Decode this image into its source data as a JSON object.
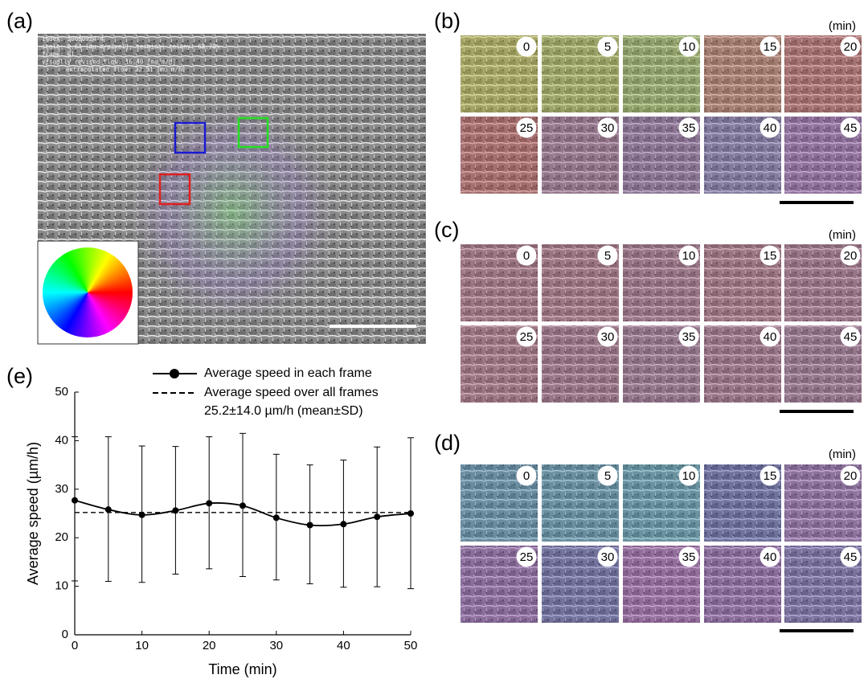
{
  "panel_a": {
    "label": "(a)",
    "overlay_text": [
      "index: 20080924-4",
      "scale: 0.64 [mu m/pixel], terminal colony: 68.70%",
      "frame: 01",
      "visually revised flow: 16.40 [mu m/h]",
      "extrapolated flow: 22.51 [mu m/h]"
    ]
  },
  "panel_b": {
    "label": "(b)",
    "unit": "(min)",
    "times": [
      0,
      5,
      10,
      15,
      20,
      25,
      30,
      35,
      40,
      45
    ]
  },
  "panel_c": {
    "label": "(c)",
    "unit": "(min)",
    "times": [
      0,
      5,
      10,
      15,
      20,
      25,
      30,
      35,
      40,
      45
    ]
  },
  "panel_d": {
    "label": "(d)",
    "unit": "(min)",
    "times": [
      0,
      5,
      10,
      15,
      20,
      25,
      30,
      35,
      40,
      45
    ]
  },
  "chart_data": {
    "type": "line",
    "label": "(e)",
    "xlabel": "Time (min)",
    "ylabel": "Average speed (µm/h)",
    "x": [
      0,
      5,
      10,
      15,
      20,
      25,
      30,
      35,
      40,
      45,
      50
    ],
    "series": [
      {
        "name": "Average speed in each frame",
        "color": "#000000",
        "values": [
          27.7,
          25.8,
          24.7,
          25.6,
          27.1,
          26.6,
          24.1,
          22.6,
          22.8,
          24.3,
          25.0
        ],
        "lower": [
          11.1,
          11.0,
          10.8,
          12.5,
          13.6,
          12.0,
          11.3,
          10.5,
          9.8,
          9.9,
          9.5
        ],
        "upper": [
          40.8,
          40.8,
          38.9,
          38.8,
          40.8,
          41.5,
          37.2,
          35.0,
          36.0,
          38.7,
          40.6
        ]
      }
    ],
    "mean_line": {
      "name": "Average speed over all frames",
      "note": "25.2±14.0 µm/h (mean±SD)",
      "value": 25.2
    },
    "xlim": [
      0,
      50
    ],
    "xticks": [
      0,
      10,
      20,
      30,
      40,
      50
    ],
    "ylim": [
      0,
      50
    ],
    "yticks": [
      0,
      10,
      20,
      30,
      40,
      50
    ]
  }
}
